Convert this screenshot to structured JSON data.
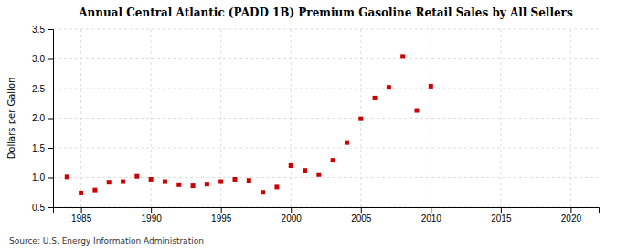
{
  "chart_data": {
    "type": "scatter",
    "title": "Annual Central Atlantic (PADD 1B) Premium Gasoline Retail Sales by All Sellers",
    "ylabel": "Dollars per Gallon",
    "source": "Source: U.S. Energy Information Administration",
    "color": "#cc0000",
    "marker": "square",
    "grid": true,
    "xlim": [
      1983,
      2022
    ],
    "ylim": [
      0.5,
      3.5
    ],
    "xticks": [
      1985,
      1990,
      1995,
      2000,
      2005,
      2010,
      2015,
      2020
    ],
    "yticks": [
      0.5,
      {
        "value": 1.0,
        "label": "1.0"
      },
      1.5,
      {
        "value": 2.0,
        "label": "2.0"
      },
      2.5,
      {
        "value": 3.0,
        "label": "3.0"
      },
      3.5
    ],
    "x": [
      1984,
      1985,
      1986,
      1987,
      1988,
      1989,
      1990,
      1991,
      1992,
      1993,
      1994,
      1995,
      1996,
      1997,
      1998,
      1999,
      2000,
      2001,
      2002,
      2003,
      2004,
      2005,
      2006,
      2007,
      2008,
      2009,
      2010
    ],
    "values": [
      1.01,
      0.74,
      0.79,
      0.92,
      0.93,
      1.02,
      0.97,
      0.93,
      0.88,
      0.86,
      0.89,
      0.93,
      0.97,
      0.95,
      0.75,
      0.84,
      1.2,
      1.12,
      1.05,
      1.29,
      1.59,
      1.99,
      2.34,
      2.52,
      3.04,
      2.13,
      2.54
    ]
  }
}
